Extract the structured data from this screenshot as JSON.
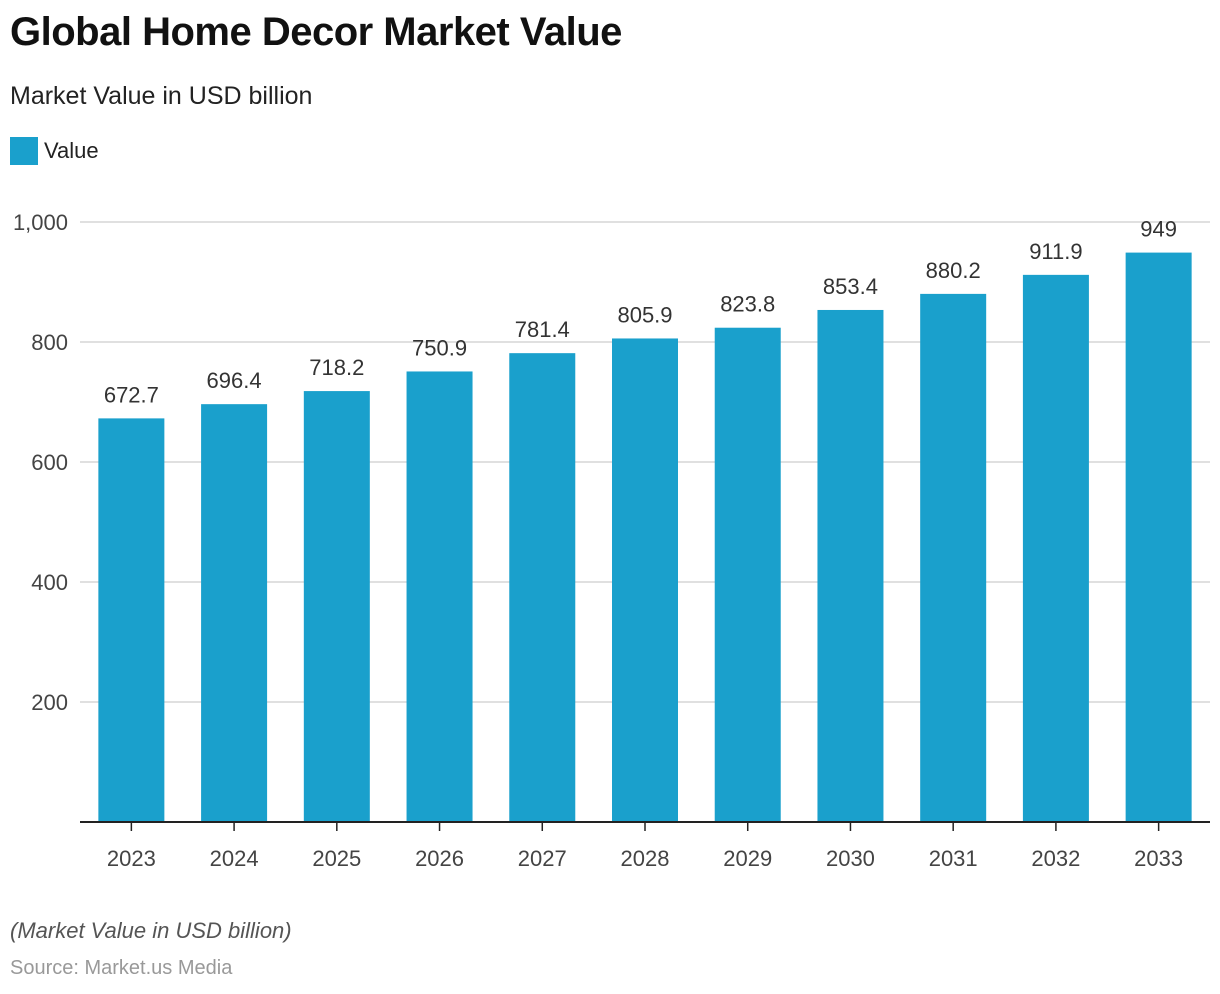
{
  "title": "Global Home Decor Market Value",
  "subtitle": "Market Value in USD billion",
  "footnote": "(Market Value in USD billion)",
  "source": "Source: Market.us Media",
  "colors": {
    "bar": "#1aa0cc",
    "grid": "#d6d6d6",
    "axis": "#222222"
  },
  "chart_data": {
    "type": "bar",
    "title": "Global Home Decor Market Value",
    "subtitle": "Market Value in USD billion",
    "categories": [
      "2023",
      "2024",
      "2025",
      "2026",
      "2027",
      "2028",
      "2029",
      "2030",
      "2031",
      "2032",
      "2033"
    ],
    "series": [
      {
        "name": "Value",
        "values": [
          672.7,
          696.4,
          718.2,
          750.9,
          781.4,
          805.9,
          823.8,
          853.4,
          880.2,
          911.9,
          949
        ],
        "labels": [
          "672.7",
          "696.4",
          "718.2",
          "750.9",
          "781.4",
          "805.9",
          "823.8",
          "853.4",
          "880.2",
          "911.9",
          "949"
        ]
      }
    ],
    "ylim": [
      0,
      1000
    ],
    "yticks": [
      200,
      400,
      600,
      800,
      1000
    ],
    "ytick_labels": [
      "200",
      "400",
      "600",
      "800",
      "1,000"
    ],
    "grid": true,
    "legend": "top-left"
  }
}
